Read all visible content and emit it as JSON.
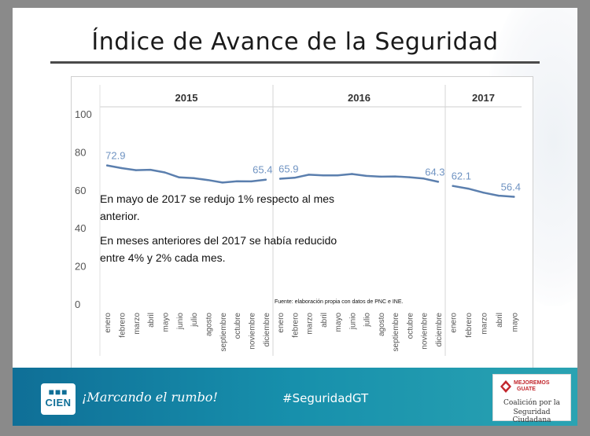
{
  "slide": {
    "title": "Índice de Avance de la Seguridad"
  },
  "chart_data": {
    "type": "line",
    "ylim": [
      0,
      100
    ],
    "yticks": [
      0,
      20,
      40,
      60,
      80,
      100
    ],
    "grid": false,
    "line_color": "#5b7fae",
    "label_color": "#6f93c2",
    "panels": [
      {
        "year": "2015",
        "categories": [
          "enero",
          "febrero",
          "marzo",
          "abril",
          "mayo",
          "junio",
          "julio",
          "agosto",
          "septiembre",
          "octubre",
          "noviembre",
          "diciembre"
        ],
        "values": [
          72.9,
          71.5,
          70.4,
          70.6,
          69.2,
          66.6,
          66.2,
          65.2,
          63.9,
          64.6,
          64.5,
          65.4
        ],
        "labels": [
          {
            "index": 0,
            "text": "72.9"
          },
          {
            "index": 11,
            "text": "65.4"
          }
        ]
      },
      {
        "year": "2016",
        "categories": [
          "enero",
          "febrero",
          "marzo",
          "abril",
          "mayo",
          "junio",
          "julio",
          "agosto",
          "septiembre",
          "octubre",
          "noviembre",
          "diciembre"
        ],
        "values": [
          65.9,
          66.4,
          68.0,
          67.7,
          67.7,
          68.4,
          67.4,
          67.0,
          67.1,
          66.7,
          66.0,
          64.3
        ],
        "labels": [
          {
            "index": 0,
            "text": "65.9"
          },
          {
            "index": 11,
            "text": "64.3"
          }
        ]
      },
      {
        "year": "2017",
        "categories": [
          "enero",
          "febrero",
          "marzo",
          "abril",
          "mayo"
        ],
        "values": [
          62.1,
          60.7,
          58.6,
          57.0,
          56.4
        ],
        "labels": [
          {
            "index": 0,
            "text": "62.1"
          },
          {
            "index": 4,
            "text": "56.4"
          }
        ]
      }
    ],
    "annotations": [
      "En mayo de 2017 se redujo 1% respecto al mes",
      "anterior.",
      "En meses anteriores del 2017 se había reducido",
      "entre 4% y 2% cada mes."
    ],
    "source": "Fuente: elaboración propia con datos de PNC e INE."
  },
  "footer": {
    "logo_dots": "■■■",
    "logo_word": "CIEN",
    "slogan": "¡Marcando el rumbo!",
    "hashtag": "#SeguridadGT",
    "coalition_mark_line1": "MEJOREMOS",
    "coalition_mark_line2": "GUATE",
    "coalition_line1": "Coalición por la",
    "coalition_line2": "Seguridad Ciudadana"
  }
}
